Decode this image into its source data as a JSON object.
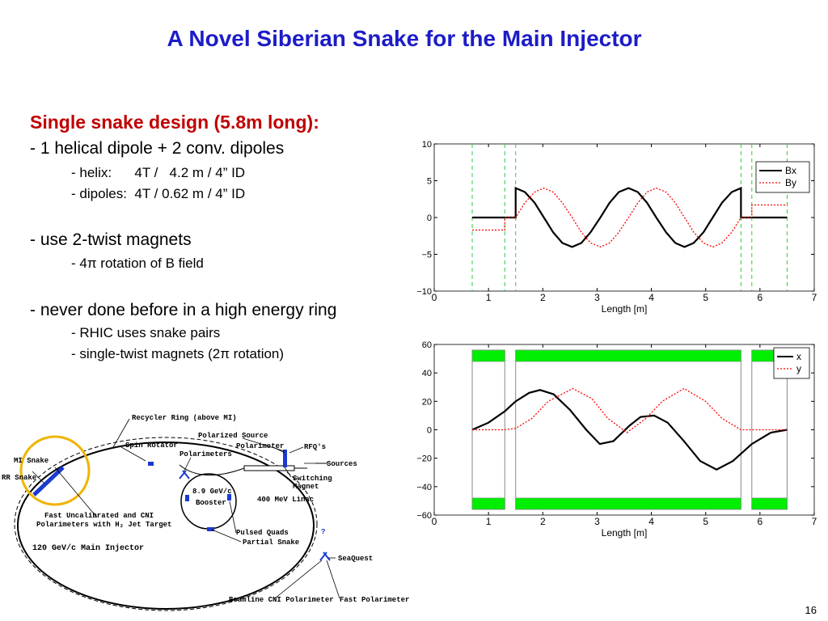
{
  "header": {
    "title": "A Novel Siberian Snake for the Main Injector"
  },
  "body": {
    "heading": "Single snake design (5.8m long):",
    "items": [
      "- 1 helical dipole + 2 conv. dipoles",
      "- helix:      4T /   4.2 m / 4” ID",
      "- dipoles:  4T / 0.62 m / 4” ID",
      "- use 2-twist magnets",
      "- 4π rotation of B field",
      "- never done before in a high energy ring",
      "- RHIC uses snake pairs",
      "- single-twist magnets (2π rotation)"
    ]
  },
  "chart_data": [
    {
      "type": "line",
      "xlabel": "Length [m]",
      "xlim": [
        0,
        7
      ],
      "xticks": [
        0,
        1,
        2,
        3,
        4,
        5,
        6,
        7
      ],
      "ylim": [
        -10,
        10
      ],
      "yticks": [
        {
          "value": -10,
          "label": "−10"
        },
        {
          "value": -5,
          "label": "−5"
        },
        0,
        5,
        10
      ],
      "vlines": [
        0.7,
        1.3,
        1.5,
        5.65,
        5.85,
        6.5
      ],
      "vline_color": "#33cc33",
      "legend": "upper right",
      "series": [
        {
          "name": "Bx",
          "color": "#000000",
          "linestyle": "solid",
          "x": [
            0.7,
            1.5,
            1.5,
            1.67,
            1.85,
            2.02,
            2.19,
            2.36,
            2.54,
            2.71,
            2.88,
            3.06,
            3.23,
            3.4,
            3.58,
            3.75,
            3.92,
            4.09,
            4.27,
            4.44,
            4.61,
            4.78,
            4.96,
            5.13,
            5.3,
            5.48,
            5.65,
            5.65,
            6.5
          ],
          "values": [
            0,
            0,
            4,
            3.46,
            2,
            0,
            -2,
            -3.46,
            -4,
            -3.46,
            -2,
            0,
            2,
            3.46,
            4,
            3.46,
            2,
            0,
            -2,
            -3.46,
            -4,
            -3.46,
            -2,
            0,
            2,
            3.46,
            4,
            0,
            0
          ]
        },
        {
          "name": "By",
          "color": "#ff0000",
          "linestyle": "dotted",
          "x": [
            0.7,
            1.3,
            1.3,
            1.5,
            1.67,
            1.85,
            2.02,
            2.19,
            2.36,
            2.54,
            2.71,
            2.88,
            3.06,
            3.23,
            3.4,
            3.58,
            3.75,
            3.92,
            4.09,
            4.27,
            4.44,
            4.61,
            4.78,
            4.96,
            5.13,
            5.3,
            5.48,
            5.65,
            5.85,
            5.85,
            6.5
          ],
          "values": [
            -1.7,
            -1.7,
            0,
            0,
            2,
            3.46,
            4,
            3.46,
            2,
            0,
            -2,
            -3.46,
            -4,
            -3.46,
            -2,
            0,
            2,
            3.46,
            4,
            3.46,
            2,
            0,
            -2,
            -3.46,
            -4,
            -3.46,
            -2,
            0,
            0,
            1.7,
            1.7
          ]
        }
      ]
    },
    {
      "type": "line",
      "xlabel": "Length [m]",
      "xlim": [
        0,
        7
      ],
      "xticks": [
        0,
        1,
        2,
        3,
        4,
        5,
        6,
        7
      ],
      "ylim": [
        -60,
        60
      ],
      "yticks": [
        {
          "value": -60,
          "label": "−60"
        },
        {
          "value": -40,
          "label": "−40"
        },
        {
          "value": -20,
          "label": "−20"
        },
        0,
        20,
        40,
        60
      ],
      "magnets": [
        [
          0.7,
          1.3
        ],
        [
          1.5,
          5.65
        ],
        [
          5.85,
          6.5
        ]
      ],
      "magnet_band": [
        48,
        56
      ],
      "magnet_color": "#00ee00",
      "legend": "upper right",
      "series": [
        {
          "name": "x",
          "color": "#000000",
          "linestyle": "solid",
          "x": [
            0.7,
            1.0,
            1.3,
            1.5,
            1.75,
            1.95,
            2.2,
            2.5,
            2.8,
            3.05,
            3.3,
            3.6,
            3.8,
            4.05,
            4.3,
            4.6,
            4.9,
            5.2,
            5.5,
            5.85,
            6.2,
            6.5
          ],
          "values": [
            0,
            5,
            13,
            20,
            26,
            28,
            25,
            14,
            0,
            -10,
            -8,
            3,
            9,
            10,
            5,
            -8,
            -22,
            -28,
            -22,
            -10,
            -2,
            0
          ]
        },
        {
          "name": "y",
          "color": "#ff0000",
          "linestyle": "dotted",
          "x": [
            0.7,
            1.3,
            1.5,
            1.8,
            2.1,
            2.55,
            2.9,
            3.2,
            3.55,
            3.9,
            4.2,
            4.6,
            5.0,
            5.3,
            5.65,
            6.0,
            6.5
          ],
          "values": [
            0,
            0,
            1,
            8,
            20,
            29,
            22,
            8,
            -2,
            8,
            20,
            29,
            20,
            8,
            0,
            0,
            0
          ]
        }
      ]
    }
  ],
  "diagram": {
    "labels": [
      "Recycler Ring (above MI)",
      "Spin Rotator",
      "Polarized Source",
      "Polarimeter",
      "RFQ's",
      "Sources",
      "Polarimeters",
      "Switching",
      "Magnet",
      "8.9 GeV/c",
      "Booster",
      "400 MeV Linac",
      "MI Snake",
      "RR Snake",
      "Fast Uncalibrated and CNI",
      "Polarimeters with H₂ Jet Target",
      "Pulsed Quads",
      "?",
      "Partial Snake",
      "120 GeV/c Main Injector",
      "SeaQuest",
      "Beamline CNI Polarimeter",
      "Fast Polarimeter"
    ]
  },
  "footer": {
    "page": "16"
  }
}
